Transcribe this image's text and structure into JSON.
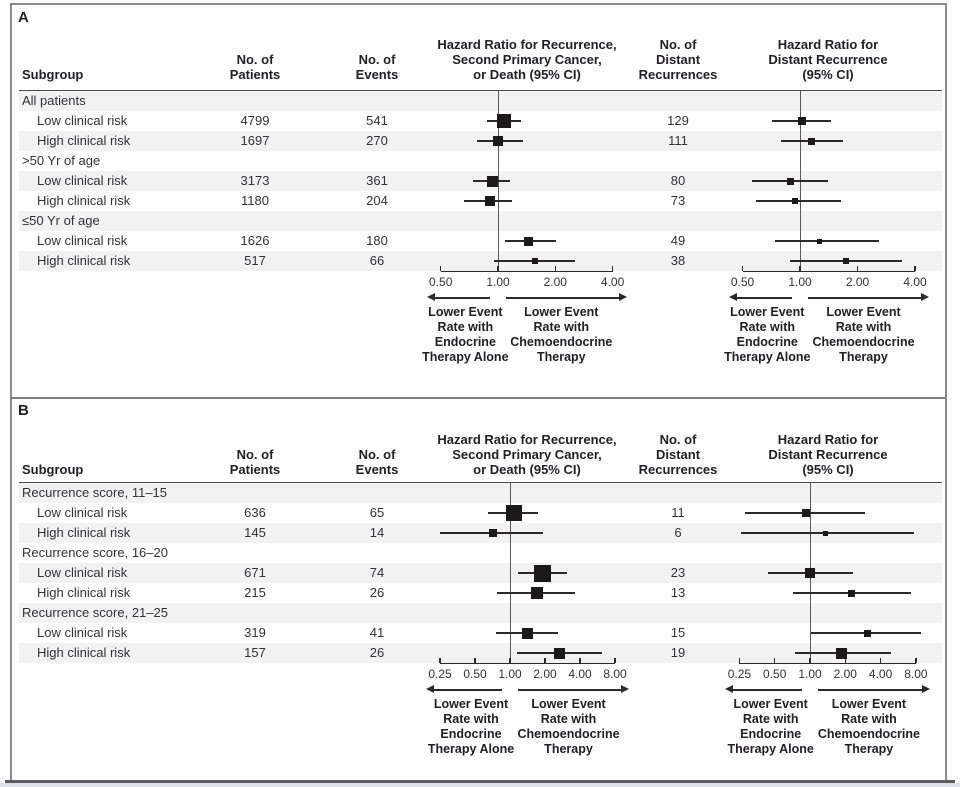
{
  "panels": [
    {
      "label": "A",
      "table": {
        "headers": {
          "subgroup": "Subgroup",
          "patients": "No. of\nPatients",
          "events": "No. of\nEvents",
          "hr_recurrence": "Hazard Ratio for Recurrence,\nSecond Primary Cancer,\nor Death (95% CI)",
          "distant": "No. of\nDistant\nRecurrences",
          "hr_distant": "Hazard Ratio for\nDistant Recurrence\n(95% CI)"
        },
        "rows": [
          {
            "kind": "group",
            "subgroup": "All patients"
          },
          {
            "kind": "data",
            "subgroup": "Low clinical risk",
            "patients": "4799",
            "events": "541",
            "distant": "129"
          },
          {
            "kind": "data",
            "subgroup": "High clinical risk",
            "patients": "1697",
            "events": "270",
            "distant": "111"
          },
          {
            "kind": "group",
            "subgroup": ">50 Yr of age"
          },
          {
            "kind": "data",
            "subgroup": "Low clinical risk",
            "patients": "3173",
            "events": "361",
            "distant": "80"
          },
          {
            "kind": "data",
            "subgroup": "High clinical risk",
            "patients": "1180",
            "events": "204",
            "distant": "73"
          },
          {
            "kind": "group",
            "subgroup": "≤50 Yr of age"
          },
          {
            "kind": "data",
            "subgroup": "Low clinical risk",
            "patients": "1626",
            "events": "180",
            "distant": "49"
          },
          {
            "kind": "data",
            "subgroup": "High clinical risk",
            "patients": "517",
            "events": "66",
            "distant": "38"
          }
        ]
      },
      "axis_tick_labels": [
        "0.50",
        "1.00",
        "2.00",
        "4.00"
      ],
      "arrow_labels": {
        "left": "Lower Event\nRate with\nEndocrine\nTherapy Alone",
        "right": "Lower Event\nRate with\nChemoendocrine\nTherapy"
      }
    },
    {
      "label": "B",
      "table": {
        "headers": {
          "subgroup": "Subgroup",
          "patients": "No. of\nPatients",
          "events": "No. of\nEvents",
          "hr_recurrence": "Hazard Ratio for Recurrence,\nSecond Primary Cancer,\nor Death (95% CI)",
          "distant": "No. of\nDistant\nRecurrences",
          "hr_distant": "Hazard Ratio for\nDistant Recurrence\n(95% CI)"
        },
        "rows": [
          {
            "kind": "group",
            "subgroup": "Recurrence score, 11–15"
          },
          {
            "kind": "data",
            "subgroup": "Low clinical risk",
            "patients": "636",
            "events": "65",
            "distant": "11"
          },
          {
            "kind": "data",
            "subgroup": "High clinical risk",
            "patients": "145",
            "events": "14",
            "distant": "6"
          },
          {
            "kind": "group",
            "subgroup": "Recurrence score, 16–20"
          },
          {
            "kind": "data",
            "subgroup": "Low clinical risk",
            "patients": "671",
            "events": "74",
            "distant": "23"
          },
          {
            "kind": "data",
            "subgroup": "High clinical risk",
            "patients": "215",
            "events": "26",
            "distant": "13"
          },
          {
            "kind": "group",
            "subgroup": "Recurrence score, 21–25"
          },
          {
            "kind": "data",
            "subgroup": "Low clinical risk",
            "patients": "319",
            "events": "41",
            "distant": "15"
          },
          {
            "kind": "data",
            "subgroup": "High clinical risk",
            "patients": "157",
            "events": "26",
            "distant": "19"
          }
        ]
      },
      "axis_tick_labels": [
        "0.25",
        "0.50",
        "1.00",
        "2.00",
        "4.00",
        "8.00"
      ],
      "arrow_labels": {
        "left": "Lower Event\nRate with\nEndocrine\nTherapy Alone",
        "right": "Lower Event\nRate with\nChemoendocrine\nTherapy"
      }
    }
  ],
  "chart_data": [
    {
      "type": "scatter",
      "subtype": "forest-plot",
      "panel": "A",
      "title": "Hazard Ratio for Recurrence, Second Primary Cancer, or Death (95% CI)",
      "x_scale": "log2",
      "x_ticks": [
        0.5,
        1,
        2,
        4
      ],
      "reference_line": 1,
      "direction_left": "Lower Event Rate with Endocrine Therapy Alone",
      "direction_right": "Lower Event Rate with Chemoendocrine Therapy",
      "points": [
        {
          "subgroup": "All patients – Low clinical risk",
          "hr": 1.08,
          "ci": [
            0.88,
            1.32
          ],
          "marker": 14
        },
        {
          "subgroup": "All patients – High clinical risk",
          "hr": 1.0,
          "ci": [
            0.78,
            1.35
          ],
          "marker": 10
        },
        {
          "subgroup": ">50 yr – Low clinical risk",
          "hr": 0.94,
          "ci": [
            0.74,
            1.16
          ],
          "marker": 11
        },
        {
          "subgroup": ">50 yr – High clinical risk",
          "hr": 0.91,
          "ci": [
            0.66,
            1.19
          ],
          "marker": 10
        },
        {
          "subgroup": "≤50 yr – Low clinical risk",
          "hr": 1.45,
          "ci": [
            1.09,
            2.02
          ],
          "marker": 9
        },
        {
          "subgroup": "≤50 yr – High clinical risk",
          "hr": 1.57,
          "ci": [
            0.95,
            2.55
          ],
          "marker": 6
        }
      ]
    },
    {
      "type": "scatter",
      "subtype": "forest-plot",
      "panel": "A",
      "title": "Hazard Ratio for Distant Recurrence (95% CI)",
      "x_scale": "log2",
      "x_ticks": [
        0.5,
        1,
        2,
        4
      ],
      "reference_line": 1,
      "direction_left": "Lower Event Rate with Endocrine Therapy Alone",
      "direction_right": "Lower Event Rate with Chemoendocrine Therapy",
      "points": [
        {
          "subgroup": "All patients – Low clinical risk",
          "hr": 1.03,
          "ci": [
            0.71,
            1.46
          ],
          "marker": 8
        },
        {
          "subgroup": "All patients – High clinical risk",
          "hr": 1.15,
          "ci": [
            0.8,
            1.67
          ],
          "marker": 7
        },
        {
          "subgroup": ">50 yr – Low clinical risk",
          "hr": 0.89,
          "ci": [
            0.56,
            1.4
          ],
          "marker": 7
        },
        {
          "subgroup": ">50 yr – High clinical risk",
          "hr": 0.94,
          "ci": [
            0.59,
            1.64
          ],
          "marker": 6
        },
        {
          "subgroup": "≤50 yr – Low clinical risk",
          "hr": 1.26,
          "ci": [
            0.74,
            2.59
          ],
          "marker": 5
        },
        {
          "subgroup": "≤50 yr – High clinical risk",
          "hr": 1.74,
          "ci": [
            0.89,
            3.42
          ],
          "marker": 6
        }
      ]
    },
    {
      "type": "scatter",
      "subtype": "forest-plot",
      "panel": "B",
      "title": "Hazard Ratio for Recurrence, Second Primary Cancer, or Death (95% CI)",
      "x_scale": "log2",
      "x_ticks": [
        0.25,
        0.5,
        1,
        2,
        4,
        8
      ],
      "reference_line": 1,
      "direction_left": "Lower Event Rate with Endocrine Therapy Alone",
      "direction_right": "Lower Event Rate with Chemoendocrine Therapy",
      "points": [
        {
          "subgroup": "RS 11–15 – Low clinical risk",
          "hr": 1.08,
          "ci": [
            0.65,
            1.75
          ],
          "marker": 16
        },
        {
          "subgroup": "RS 11–15 – High clinical risk",
          "hr": 0.72,
          "ci": [
            0.25,
            1.92
          ],
          "marker": 8
        },
        {
          "subgroup": "RS 16–20 – Low clinical risk",
          "hr": 1.9,
          "ci": [
            1.18,
            3.07
          ],
          "marker": 17
        },
        {
          "subgroup": "RS 16–20 – High clinical risk",
          "hr": 1.7,
          "ci": [
            0.77,
            3.6
          ],
          "marker": 12
        },
        {
          "subgroup": "RS 21–25 – Low clinical risk",
          "hr": 1.41,
          "ci": [
            0.76,
            2.6
          ],
          "marker": 11
        },
        {
          "subgroup": "RS 21–25 – High clinical risk",
          "hr": 2.66,
          "ci": [
            1.15,
            6.15
          ],
          "marker": 11
        }
      ]
    },
    {
      "type": "scatter",
      "subtype": "forest-plot",
      "panel": "B",
      "title": "Hazard Ratio for Distant Recurrence (95% CI)",
      "x_scale": "log2",
      "x_ticks": [
        0.25,
        0.5,
        1,
        2,
        4,
        8
      ],
      "reference_line": 1,
      "direction_left": "Lower Event Rate with Endocrine Therapy Alone",
      "direction_right": "Lower Event Rate with Chemoendocrine Therapy",
      "points": [
        {
          "subgroup": "RS 11–15 – Low clinical risk",
          "hr": 0.92,
          "ci": [
            0.28,
            2.97
          ],
          "marker": 8
        },
        {
          "subgroup": "RS 11–15 – High clinical risk",
          "hr": 1.35,
          "ci": [
            0.26,
            7.7
          ],
          "marker": 5
        },
        {
          "subgroup": "RS 16–20 – Low clinical risk",
          "hr": 1.0,
          "ci": [
            0.44,
            2.33
          ],
          "marker": 10
        },
        {
          "subgroup": "RS 16–20 – High clinical risk",
          "hr": 2.28,
          "ci": [
            0.71,
            7.25
          ],
          "marker": 7
        },
        {
          "subgroup": "RS 21–25 – Low clinical risk",
          "hr": 3.07,
          "ci": [
            1.01,
            8.8
          ],
          "marker": 7
        },
        {
          "subgroup": "RS 21–25 – High clinical risk",
          "hr": 1.87,
          "ci": [
            0.74,
            4.9
          ],
          "marker": 11
        }
      ]
    }
  ]
}
